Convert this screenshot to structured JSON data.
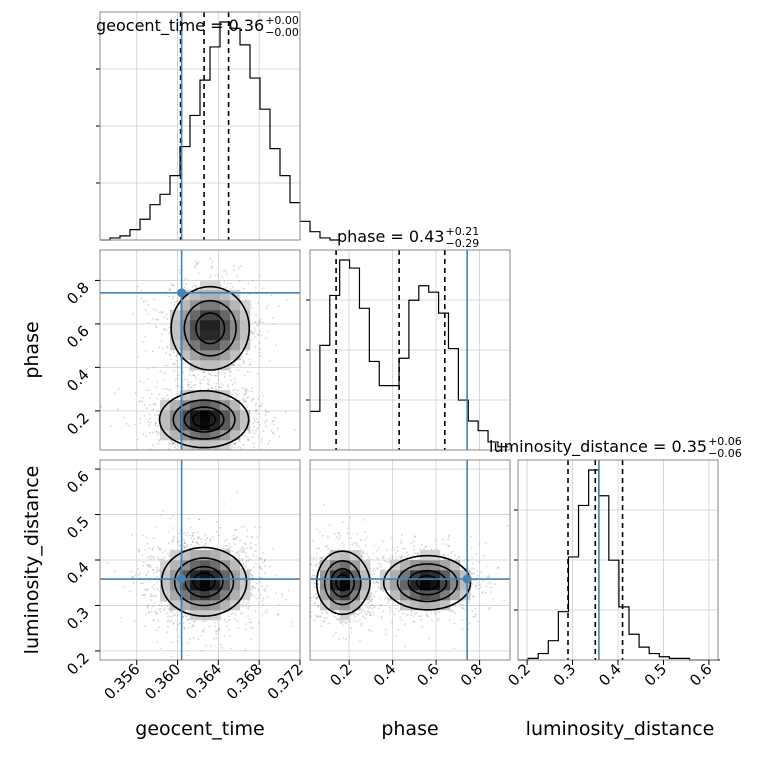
{
  "chart_data": {
    "type": "corner",
    "parameters": [
      "geocent_time",
      "phase",
      "luminosity_distance"
    ],
    "truth_color": "#4682b4",
    "truths": {
      "geocent_time": 0.3604,
      "phase": 0.743,
      "luminosity_distance": 0.358
    },
    "axis_labels": {
      "x": [
        "geocent_time",
        "phase",
        "luminosity_distance"
      ],
      "y": [
        "phase",
        "luminosity_distance"
      ]
    },
    "titles": [
      {
        "param": "geocent_time",
        "text": "geocent_time = 0.36",
        "sup": "+0.00",
        "sub": "−0.00"
      },
      {
        "param": "phase",
        "text": "phase = 0.43",
        "sup": "+0.21",
        "sub": "−0.29"
      },
      {
        "param": "luminosity_distance",
        "text": "luminosity_distance = 0.35",
        "sup": "+0.06",
        "sub": "−0.06"
      }
    ],
    "ticks": {
      "geocent_time": [
        "0.356",
        "0.360",
        "0.364",
        "0.368",
        "0.372"
      ],
      "phase_x": [
        "0.2",
        "0.4",
        "0.6",
        "0.8"
      ],
      "phase_y": [
        "0.2",
        "0.4",
        "0.6",
        "0.8"
      ],
      "luminosity_distance_x": [
        "0.2",
        "0.3",
        "0.4",
        "0.5",
        "0.6"
      ],
      "luminosity_distance_y": [
        "0.2",
        "0.3",
        "0.4",
        "0.5",
        "0.6"
      ]
    },
    "ranges": {
      "geocent_time": [
        0.3524,
        0.372
      ],
      "phase": [
        0.02,
        0.94
      ],
      "luminosity_distance": [
        0.18,
        0.62
      ]
    },
    "histograms": {
      "geocent_time": {
        "edges_start": 0.3524,
        "bin_width": 0.00098,
        "counts": [
          0,
          1,
          2,
          5,
          10,
          17,
          22,
          31,
          45,
          60,
          77,
          93,
          105,
          102,
          94,
          78,
          63,
          44,
          31,
          18,
          9,
          4,
          1,
          0
        ],
        "quantiles": [
          0.3603,
          0.3626,
          0.365
        ]
      },
      "phase": {
        "edges_start": 0.02,
        "bin_width": 0.0455,
        "counts": [
          24,
          65,
          96,
          118,
          113,
          88,
          55,
          40,
          40,
          57,
          93,
          102,
          98,
          85,
          63,
          31,
          18,
          12,
          5,
          2
        ],
        "quantiles": [
          0.14,
          0.43,
          0.64
        ]
      },
      "luminosity_distance": {
        "edges_start": 0.18,
        "bin_width": 0.0222,
        "counts": [
          0,
          1,
          4,
          12,
          30,
          64,
          96,
          118,
          102,
          62,
          33,
          16,
          8,
          4,
          2,
          1,
          1,
          0,
          0,
          0
        ],
        "quantiles": [
          0.29,
          0.35,
          0.41
        ]
      }
    },
    "density_blobs": {
      "phase_vs_geocent_time": [
        {
          "x": 0.3632,
          "y": 0.58,
          "sx": 0.002,
          "sy": 0.1,
          "w": 1.0
        },
        {
          "x": 0.3626,
          "y": 0.16,
          "sx": 0.0022,
          "sy": 0.065,
          "w": 1.15
        }
      ],
      "luminosity_distance_vs_geocent_time": [
        {
          "x": 0.3626,
          "y": 0.352,
          "sx": 0.0021,
          "sy": 0.038,
          "w": 1.0
        }
      ],
      "luminosity_distance_vs_phase": [
        {
          "x": 0.17,
          "y": 0.35,
          "sx": 0.06,
          "sy": 0.035,
          "w": 1.0
        },
        {
          "x": 0.56,
          "y": 0.35,
          "sx": 0.1,
          "sy": 0.03,
          "w": 1.0
        }
      ]
    }
  }
}
